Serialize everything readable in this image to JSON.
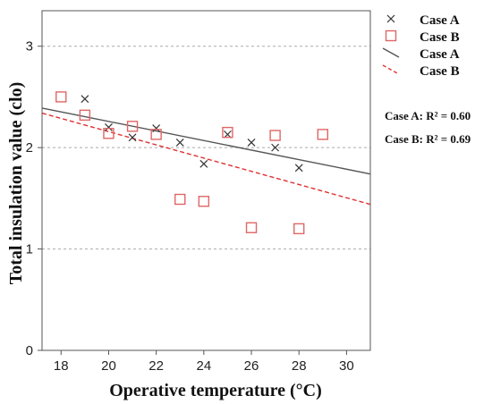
{
  "chart_data": {
    "type": "scatter",
    "xlabel": "Operative temperature (°C)",
    "ylabel": "Total insulation value (clo)",
    "xlim": [
      17.2,
      31
    ],
    "ylim": [
      0,
      3.35
    ],
    "x_ticks": [
      18,
      20,
      22,
      24,
      26,
      28,
      30
    ],
    "y_ticks": [
      0,
      1,
      2,
      3
    ],
    "grid": "horizontal dashed at y ticks",
    "legend_placement": "right",
    "series": [
      {
        "name": "Case A",
        "kind": "points",
        "marker": "x",
        "color": "#333333",
        "points": [
          [
            19,
            2.48
          ],
          [
            20,
            2.2
          ],
          [
            21,
            2.1
          ],
          [
            22,
            2.19
          ],
          [
            23,
            2.05
          ],
          [
            24,
            1.84
          ],
          [
            25,
            2.13
          ],
          [
            26,
            2.05
          ],
          [
            27,
            2.0
          ],
          [
            28,
            1.8
          ]
        ]
      },
      {
        "name": "Case B",
        "kind": "points",
        "marker": "square",
        "color": "#e06666",
        "points": [
          [
            18,
            2.5
          ],
          [
            19,
            2.32
          ],
          [
            20,
            2.14
          ],
          [
            21,
            2.21
          ],
          [
            22,
            2.13
          ],
          [
            23,
            1.49
          ],
          [
            24,
            1.47
          ],
          [
            25,
            2.15
          ],
          [
            26,
            1.21
          ],
          [
            27,
            2.12
          ],
          [
            28,
            1.2
          ],
          [
            29,
            2.13
          ]
        ]
      },
      {
        "name": "Case A",
        "kind": "fit-line",
        "style": "solid",
        "color": "#555555",
        "line": [
          [
            17.2,
            2.39
          ],
          [
            31,
            1.74
          ]
        ]
      },
      {
        "name": "Case B",
        "kind": "fit-line",
        "style": "dashed",
        "color": "#e03030",
        "line": [
          [
            17.2,
            2.34
          ],
          [
            31,
            1.44
          ]
        ]
      }
    ],
    "annotations": [
      "Case A: R² = 0.60",
      "Case B: R² = 0.69"
    ]
  }
}
